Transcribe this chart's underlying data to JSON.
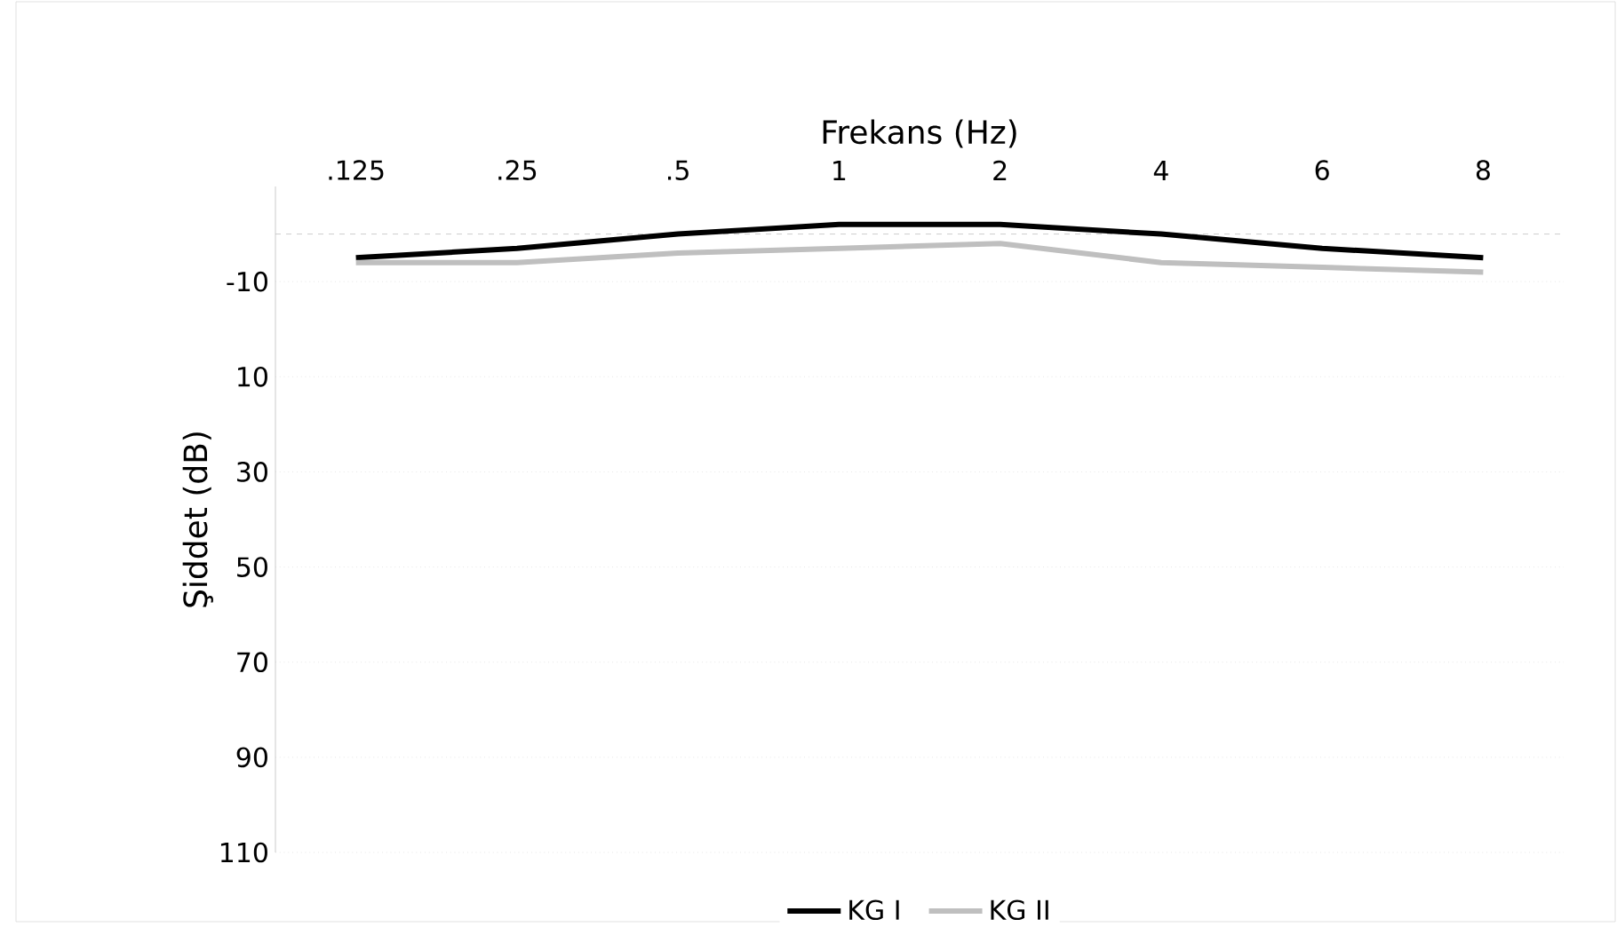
{
  "chart_data": {
    "type": "line",
    "xlabel": "Frekans (Hz)",
    "ylabel": "Şiddet (dB)",
    "categories": [
      ".125",
      ".25",
      ".5",
      "1",
      "2",
      "4",
      "6",
      "8"
    ],
    "series": [
      {
        "name": "KG I",
        "color": "#000000",
        "values": [
          -15,
          -17,
          -20,
          -22,
          -22,
          -20,
          -17,
          -15
        ]
      },
      {
        "name": "KG II",
        "color": "#bfbfbf",
        "values": [
          -14,
          -14,
          -16,
          -17,
          -18,
          -14,
          -13,
          -12
        ]
      }
    ],
    "ylim": [
      110,
      -30
    ],
    "yticks": [
      -10,
      10,
      30,
      50,
      70,
      90,
      110
    ],
    "ref_lines": [
      {
        "axis": "y",
        "value": -20,
        "color": "#bfbfbf",
        "line_style": "dashed"
      }
    ],
    "grid": "y",
    "legend": "bottom",
    "marker": "none",
    "line_style": "solid"
  }
}
